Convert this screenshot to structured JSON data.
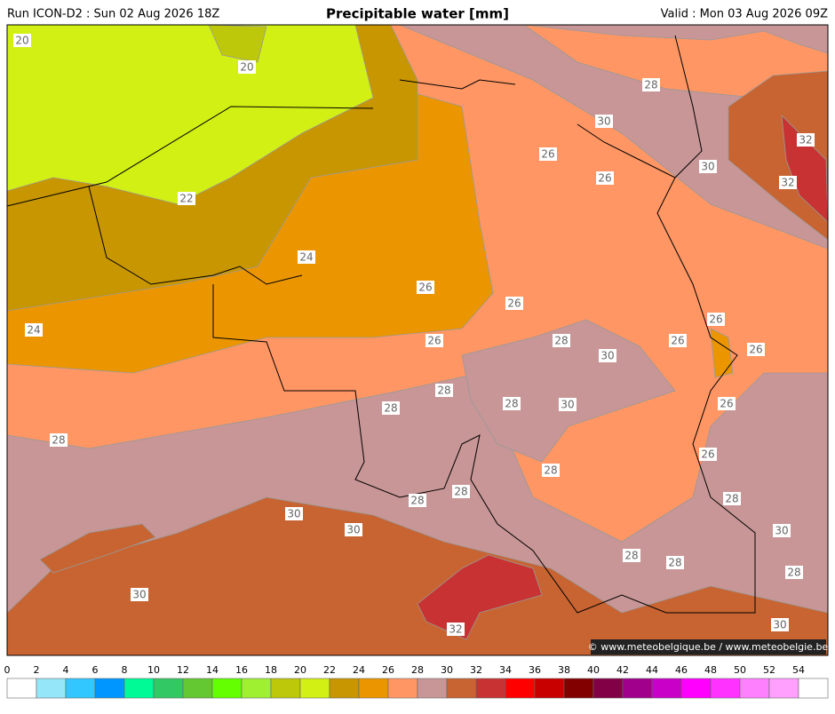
{
  "header": {
    "run": "Run ICON-D2 : Sun 02 Aug 2026 18Z",
    "title": "Precipitable water [mm]",
    "valid": "Valid : Mon 03 Aug 2026 09Z"
  },
  "map": {
    "contour_labels": [
      20,
      20,
      22,
      24,
      24,
      26,
      26,
      26,
      26,
      26,
      26,
      26,
      26,
      26,
      26,
      28,
      28,
      28,
      28,
      28,
      28,
      28,
      28,
      28,
      28,
      28,
      28,
      28,
      30,
      30,
      30,
      30,
      30,
      30,
      30,
      30,
      30,
      32,
      32,
      32
    ],
    "credit": "© www.meteobelgique.be / www.meteobelgie.be"
  },
  "colorbar": {
    "ticks": [
      0,
      2,
      4,
      6,
      8,
      10,
      12,
      14,
      16,
      18,
      20,
      22,
      24,
      26,
      28,
      30,
      32,
      34,
      36,
      38,
      40,
      42,
      44,
      46,
      48,
      50,
      52,
      54
    ],
    "colors": [
      "#ffffff",
      "#96e6fa",
      "#32c8ff",
      "#0096ff",
      "#00fa96",
      "#32c864",
      "#64c832",
      "#64ff00",
      "#a0f032",
      "#bec80a",
      "#d2f014",
      "#c89600",
      "#eb9600",
      "#ff9664",
      "#c89696",
      "#c86432",
      "#c83232",
      "#ff0000",
      "#c80000",
      "#820000",
      "#820046",
      "#a0008c",
      "#c800c8",
      "#ff00ff",
      "#ff32ff",
      "#ff80ff",
      "#ffa0ff",
      "#ffffff"
    ]
  }
}
